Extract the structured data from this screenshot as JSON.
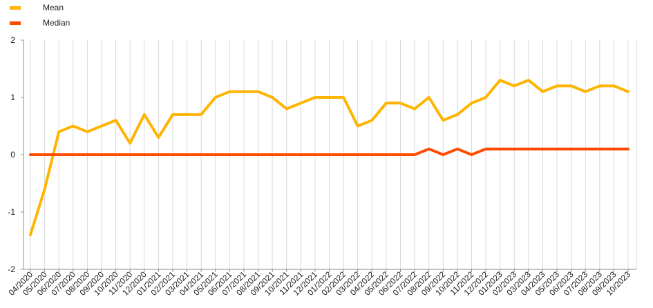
{
  "chart_data": {
    "type": "line",
    "title": "",
    "xlabel": "",
    "ylabel": "",
    "ylim": [
      -2,
      2
    ],
    "yticks": [
      -2,
      -1,
      0,
      1,
      2
    ],
    "grid": "vertical",
    "legend_position": "top-left",
    "categories": [
      "04/2020",
      "05/2020",
      "06/2020",
      "07/2020",
      "08/2020",
      "09/2020",
      "10/2020",
      "11/2020",
      "12/2020",
      "01/2021",
      "02/2021",
      "03/2021",
      "04/2021",
      "05/2021",
      "06/2021",
      "07/2021",
      "08/2021",
      "09/2021",
      "10/2021",
      "11/2021",
      "12/2021",
      "01/2022",
      "02/2022",
      "03/2022",
      "04/2022",
      "05/2022",
      "06/2022",
      "07/2022",
      "08/2022",
      "09/2022",
      "10/2022",
      "11/2022",
      "12/2022",
      "01/2023",
      "02/2023",
      "03/2023",
      "04/2023",
      "05/2023",
      "06/2023",
      "07/2023",
      "08/2023",
      "09/2023",
      "10/2023"
    ],
    "series": [
      {
        "name": "Mean",
        "color": "#FFB400",
        "values": [
          -1.4,
          -0.6,
          0.4,
          0.5,
          0.4,
          0.5,
          0.6,
          0.2,
          0.7,
          0.3,
          0.7,
          0.7,
          0.7,
          1.0,
          1.1,
          1.1,
          1.1,
          1.0,
          0.8,
          0.9,
          1.0,
          1.0,
          1.0,
          0.5,
          0.6,
          0.9,
          0.9,
          0.8,
          1.0,
          0.6,
          0.7,
          0.9,
          1.0,
          1.3,
          1.2,
          1.3,
          1.1,
          1.2,
          1.2,
          1.1,
          1.2,
          1.2,
          1.1
        ]
      },
      {
        "name": "Median",
        "color": "#FF4B00",
        "values": [
          0,
          0,
          0,
          0,
          0,
          0,
          0,
          0,
          0,
          0,
          0,
          0,
          0,
          0,
          0,
          0,
          0,
          0,
          0,
          0,
          0,
          0,
          0,
          0,
          0,
          0,
          0,
          0,
          0.1,
          0,
          0.1,
          0,
          0.1,
          0.1,
          0.1,
          0.1,
          0.1,
          0.1,
          0.1,
          0.1,
          0.1,
          0.1,
          0.1
        ]
      }
    ]
  }
}
